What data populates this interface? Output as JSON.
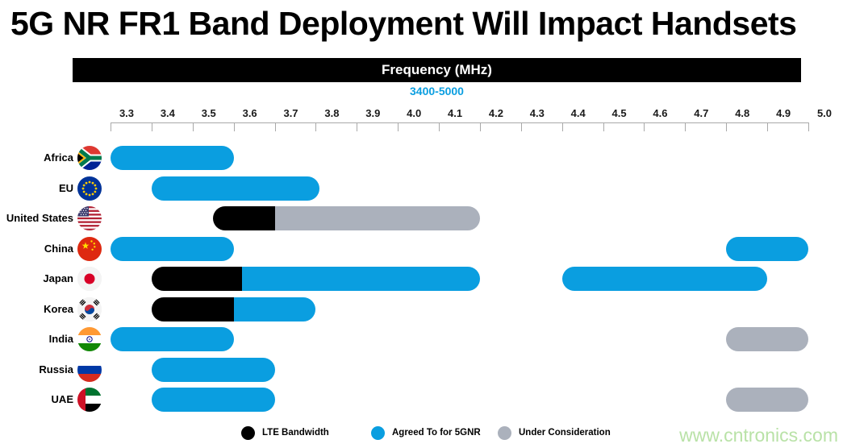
{
  "title": "5G NR FR1 Band Deployment Will Impact Handsets",
  "header": {
    "label": "Frequency (MHz)",
    "range": "3400-5000"
  },
  "watermark": "www.cntronics.com",
  "colors": {
    "accent_blue": "#0a9ee0",
    "bar_black": "#000000",
    "bar_gray": "#abb1bc",
    "header_bg": "#000000",
    "header_text": "#ffffff",
    "axis": "#a9a9a9",
    "watermark_green": "#b9e2a7"
  },
  "legend": {
    "items": [
      {
        "key": "lte",
        "label": "LTE Bandwidth",
        "color": "#000000"
      },
      {
        "key": "agreed",
        "label": "Agreed To for 5GNR",
        "color": "#0a9ee0"
      },
      {
        "key": "consideration",
        "label": "Under Consideration",
        "color": "#abb1bc"
      }
    ]
  },
  "chart_data": {
    "type": "bar",
    "subtype": "horizontal-range-gantt",
    "title": "5G NR FR1 Band Deployment Will Impact Handsets",
    "xlabel": "Frequency (MHz)",
    "x_range_label": "3400-5000",
    "xlim": [
      3.3,
      5.0
    ],
    "x_ticks": [
      "3.3",
      "3.4",
      "3.5",
      "3.6",
      "3.7",
      "3.8",
      "3.9",
      "4.0",
      "4.1",
      "4.2",
      "4.3",
      "4.4",
      "4.5",
      "4.6",
      "4.7",
      "4.8",
      "4.9",
      "5.0"
    ],
    "grid": false,
    "legend_position": "bottom",
    "legend": [
      "LTE Bandwidth",
      "Agreed To for 5GNR",
      "Under Consideration"
    ],
    "rows": [
      {
        "label": "Africa",
        "flag": "south-africa-flag",
        "bars": [
          [
            {
              "start": 3.3,
              "end": 3.6,
              "category": "agreed"
            }
          ]
        ]
      },
      {
        "label": "EU",
        "flag": "eu-flag",
        "bars": [
          [
            {
              "start": 3.4,
              "end": 3.81,
              "category": "agreed"
            }
          ]
        ]
      },
      {
        "label": "United States",
        "flag": "usa-flag",
        "bars": [
          [
            {
              "start": 3.55,
              "end": 3.7,
              "category": "lte"
            },
            {
              "start": 3.7,
              "end": 4.2,
              "category": "consideration"
            }
          ]
        ]
      },
      {
        "label": "China",
        "flag": "china-flag",
        "bars": [
          [
            {
              "start": 3.3,
              "end": 3.6,
              "category": "agreed"
            }
          ],
          [
            {
              "start": 4.8,
              "end": 5.0,
              "category": "agreed"
            }
          ]
        ]
      },
      {
        "label": "Japan",
        "flag": "japan-flag",
        "bars": [
          [
            {
              "start": 3.4,
              "end": 3.62,
              "category": "lte"
            },
            {
              "start": 3.62,
              "end": 4.2,
              "category": "agreed"
            }
          ],
          [
            {
              "start": 4.4,
              "end": 4.9,
              "category": "agreed"
            }
          ]
        ]
      },
      {
        "label": "Korea",
        "flag": "korea-flag",
        "bars": [
          [
            {
              "start": 3.4,
              "end": 3.6,
              "category": "lte"
            },
            {
              "start": 3.6,
              "end": 3.8,
              "category": "agreed"
            }
          ]
        ]
      },
      {
        "label": "India",
        "flag": "india-flag",
        "bars": [
          [
            {
              "start": 3.3,
              "end": 3.6,
              "category": "agreed"
            }
          ],
          [
            {
              "start": 4.8,
              "end": 5.0,
              "category": "consideration"
            }
          ]
        ]
      },
      {
        "label": "Russia",
        "flag": "russia-flag",
        "bars": [
          [
            {
              "start": 3.4,
              "end": 3.7,
              "category": "agreed"
            }
          ]
        ]
      },
      {
        "label": "UAE",
        "flag": "uae-flag",
        "bars": [
          [
            {
              "start": 3.4,
              "end": 3.7,
              "category": "agreed"
            }
          ],
          [
            {
              "start": 4.8,
              "end": 5.0,
              "category": "consideration"
            }
          ]
        ]
      }
    ]
  }
}
